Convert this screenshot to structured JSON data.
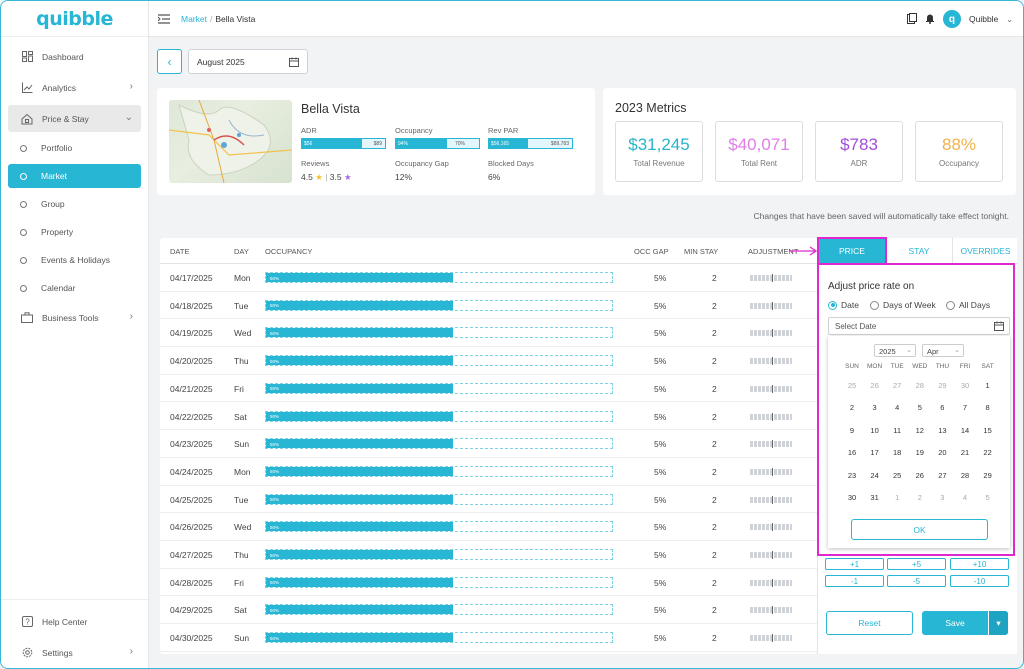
{
  "app": {
    "logo": "quibble"
  },
  "sidebar": {
    "items": [
      {
        "label": "Dashboard"
      },
      {
        "label": "Analytics"
      },
      {
        "label": "Price & Stay"
      }
    ],
    "sub_items": [
      {
        "label": "Portfolio"
      },
      {
        "label": "Market"
      },
      {
        "label": "Group"
      },
      {
        "label": "Property"
      },
      {
        "label": "Events & Holidays"
      },
      {
        "label": "Calendar"
      }
    ],
    "business_tools": "Business Tools",
    "help": "Help Center",
    "settings": "Settings"
  },
  "topbar": {
    "breadcrumb_root": "Market",
    "breadcrumb_sep": "/",
    "breadcrumb_current": "Bella Vista",
    "user": "Quibble",
    "avatar_letter": "q"
  },
  "date_bar": {
    "month": "August 2025"
  },
  "property": {
    "name": "Bella Vista",
    "adr": {
      "label": "ADR",
      "left": "$56",
      "right": "$89",
      "fill_pct": 72
    },
    "occupancy": {
      "label": "Occupancy",
      "left": "94%",
      "right": "70%",
      "fill_pct": 62
    },
    "revpar": {
      "label": "Rev PAR",
      "left": "$56,165",
      "right": "$89,783",
      "fill_pct": 47
    },
    "reviews_label": "Reviews",
    "reviews_a": "4.5",
    "reviews_b": "3.5",
    "occ_gap_label": "Occupancy Gap",
    "occ_gap": "12%",
    "blocked_label": "Blocked Days",
    "blocked": "6%"
  },
  "metrics": {
    "title": "2023 Metrics",
    "items": [
      {
        "value": "$31,245",
        "label": "Total Revenue",
        "color": "#27b6c9"
      },
      {
        "value": "$40,071",
        "label": "Total Rent",
        "color": "#e07ee6"
      },
      {
        "value": "$783",
        "label": "ADR",
        "color": "#a14fd8"
      },
      {
        "value": "88%",
        "label": "Occupancy",
        "color": "#f1b24a"
      }
    ]
  },
  "note": "Changes that have been saved will automatically take effect tonight.",
  "table": {
    "headers": {
      "date": "DATE",
      "day": "DAY",
      "occupancy": "OCCUPANCY",
      "occ_gap": "OCC GAP",
      "min_stay": "MIN STAY",
      "adjustment": "ADJUSTMENT"
    },
    "rows": [
      {
        "date": "04/17/2025",
        "day": "Mon",
        "occ": "50%",
        "gap": "5%",
        "min": "2"
      },
      {
        "date": "04/18/2025",
        "day": "Tue",
        "occ": "50%",
        "gap": "5%",
        "min": "2"
      },
      {
        "date": "04/19/2025",
        "day": "Wed",
        "occ": "50%",
        "gap": "5%",
        "min": "2"
      },
      {
        "date": "04/20/2025",
        "day": "Thu",
        "occ": "50%",
        "gap": "5%",
        "min": "2"
      },
      {
        "date": "04/21/2025",
        "day": "Fri",
        "occ": "50%",
        "gap": "5%",
        "min": "2"
      },
      {
        "date": "04/22/2025",
        "day": "Sat",
        "occ": "50%",
        "gap": "5%",
        "min": "2"
      },
      {
        "date": "04/23/2025",
        "day": "Sun",
        "occ": "50%",
        "gap": "5%",
        "min": "2"
      },
      {
        "date": "04/24/2025",
        "day": "Mon",
        "occ": "50%",
        "gap": "5%",
        "min": "2"
      },
      {
        "date": "04/25/2025",
        "day": "Tue",
        "occ": "50%",
        "gap": "5%",
        "min": "2"
      },
      {
        "date": "04/26/2025",
        "day": "Wed",
        "occ": "50%",
        "gap": "5%",
        "min": "2"
      },
      {
        "date": "04/27/2025",
        "day": "Thu",
        "occ": "50%",
        "gap": "5%",
        "min": "2"
      },
      {
        "date": "04/28/2025",
        "day": "Fri",
        "occ": "50%",
        "gap": "5%",
        "min": "2"
      },
      {
        "date": "04/29/2025",
        "day": "Sat",
        "occ": "50%",
        "gap": "5%",
        "min": "2"
      },
      {
        "date": "04/30/2025",
        "day": "Sun",
        "occ": "50%",
        "gap": "5%",
        "min": "2"
      }
    ]
  },
  "panel": {
    "tabs": [
      "PRICE",
      "STAY",
      "OVERRIDES"
    ],
    "title": "Adjust price rate on",
    "radios": [
      "Date",
      "Days of Week",
      "All Days"
    ],
    "select_date": "Select Date",
    "year": "2025",
    "month": "Apr",
    "dows": [
      "SUN",
      "MON",
      "TUE",
      "WED",
      "THU",
      "FRI",
      "SAT"
    ],
    "weeks": [
      [
        "25",
        "26",
        "27",
        "28",
        "29",
        "30",
        "1"
      ],
      [
        "2",
        "3",
        "4",
        "5",
        "6",
        "7",
        "8"
      ],
      [
        "9",
        "10",
        "11",
        "12",
        "13",
        "14",
        "15"
      ],
      [
        "16",
        "17",
        "18",
        "19",
        "20",
        "21",
        "22"
      ],
      [
        "23",
        "24",
        "25",
        "26",
        "27",
        "28",
        "29"
      ],
      [
        "30",
        "31",
        "1",
        "2",
        "3",
        "4",
        "5"
      ]
    ],
    "ok": "OK",
    "steps_row1": [
      "+1",
      "+5",
      "+10"
    ],
    "steps_row2": [
      "-1",
      "-5",
      "-10"
    ],
    "reset": "Reset",
    "save": "Save"
  },
  "colors": {
    "accent": "#27b6d4",
    "highlight": "#e028d0"
  }
}
